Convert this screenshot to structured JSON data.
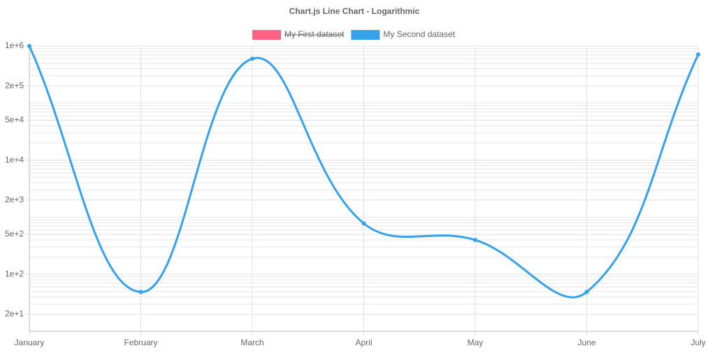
{
  "chart_data": {
    "type": "line",
    "title": "Chart.js Line Chart - Logarithmic",
    "categories": [
      "January",
      "February",
      "March",
      "April",
      "May",
      "June",
      "July"
    ],
    "series": [
      {
        "name": "My First dataset",
        "color": "#ff6384",
        "hidden": true,
        "values": [
          null,
          null,
          null,
          null,
          null,
          null,
          null
        ]
      },
      {
        "name": "My Second dataset",
        "color": "#36a2eb",
        "values": [
          1000000,
          49,
          600000,
          780,
          400,
          49,
          710000
        ]
      }
    ],
    "log_scale": true,
    "ylim": [
      10,
      1000000
    ],
    "yticks": [
      {
        "value": 20,
        "label": "2e+1"
      },
      {
        "value": 100,
        "label": "1e+2"
      },
      {
        "value": 500,
        "label": "5e+2"
      },
      {
        "value": 2000,
        "label": "2e+3"
      },
      {
        "value": 10000,
        "label": "1e+4"
      },
      {
        "value": 50000,
        "label": "5e+4"
      },
      {
        "value": 200000,
        "label": "2e+5"
      },
      {
        "value": 1000000,
        "label": "1e+6"
      }
    ],
    "y_minor_ticks": [
      10,
      30,
      40,
      50,
      60,
      70,
      80,
      90,
      200,
      300,
      400,
      600,
      700,
      800,
      900,
      1000,
      3000,
      4000,
      5000,
      6000,
      7000,
      8000,
      9000,
      20000,
      30000,
      40000,
      60000,
      70000,
      80000,
      90000,
      100000,
      300000,
      400000,
      500000,
      600000,
      700000,
      800000,
      900000
    ],
    "grid": true,
    "legend": "top"
  }
}
